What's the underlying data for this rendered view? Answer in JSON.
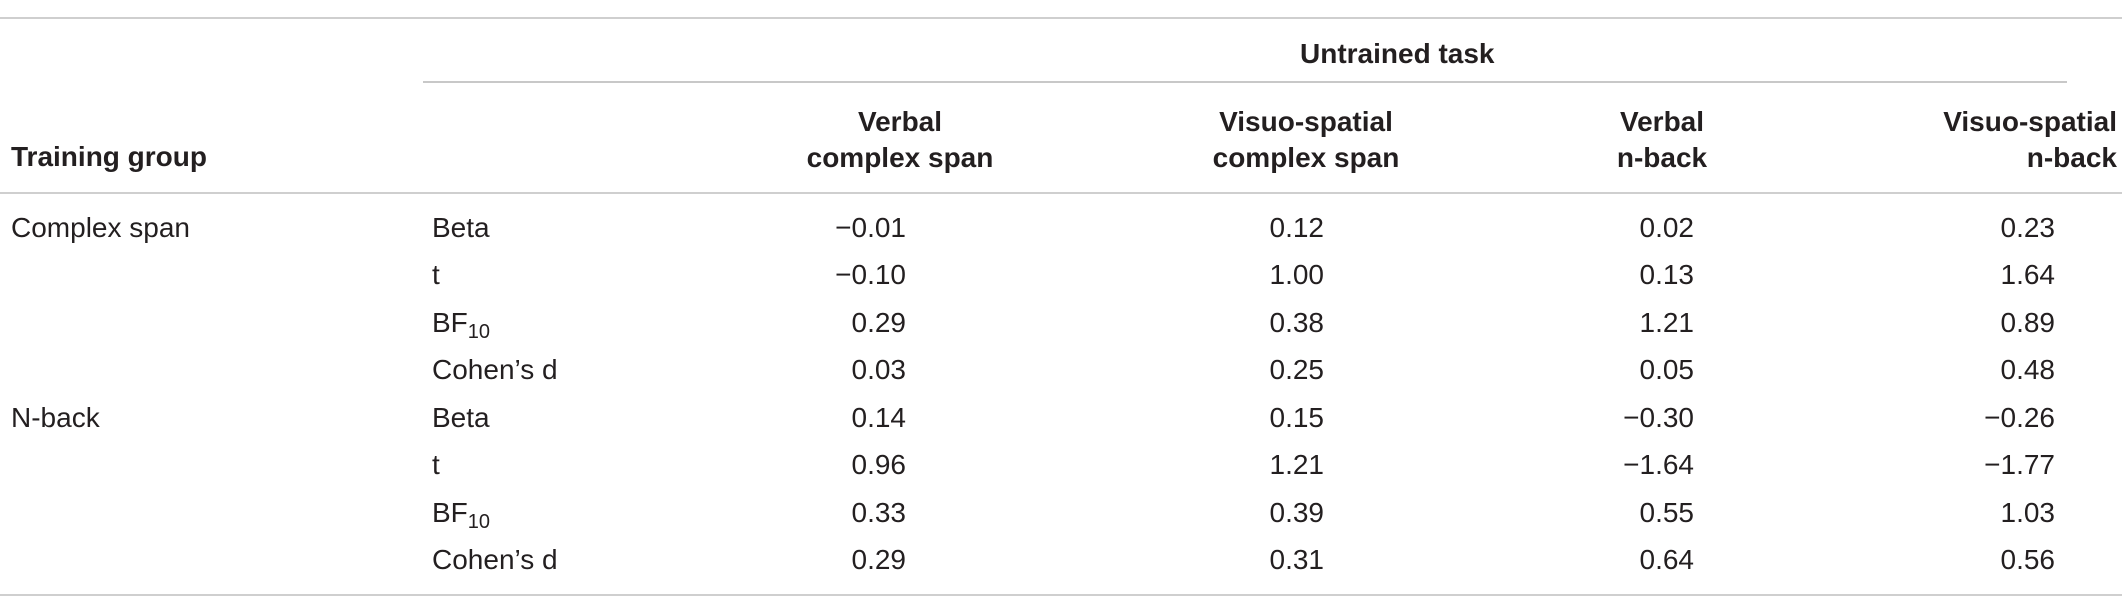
{
  "header": {
    "spanning_label": "Untrained task",
    "row_header": "Training group",
    "columns": [
      {
        "line1": "Verbal",
        "line2": "complex span"
      },
      {
        "line1": "Visuo-spatial",
        "line2": "complex span"
      },
      {
        "line1": "Verbal",
        "line2": "n-back"
      },
      {
        "line1": "Visuo-spatial",
        "line2": "n-back"
      }
    ]
  },
  "groups": [
    {
      "name": "Complex span",
      "rows": [
        {
          "stat": "Beta",
          "stat_sub": "",
          "values": [
            "−0.01",
            "0.12",
            "0.02",
            "0.23"
          ]
        },
        {
          "stat": "t",
          "stat_sub": "",
          "values": [
            "−0.10",
            "1.00",
            "0.13",
            "1.64"
          ]
        },
        {
          "stat": "BF",
          "stat_sub": "10",
          "values": [
            "0.29",
            "0.38",
            "1.21",
            "0.89"
          ]
        },
        {
          "stat": "Cohen’s d",
          "stat_sub": "",
          "values": [
            "0.03",
            "0.25",
            "0.05",
            "0.48"
          ]
        }
      ]
    },
    {
      "name": "N-back",
      "rows": [
        {
          "stat": "Beta",
          "stat_sub": "",
          "values": [
            "0.14",
            "0.15",
            "−0.30",
            "−0.26"
          ]
        },
        {
          "stat": "t",
          "stat_sub": "",
          "values": [
            "0.96",
            "1.21",
            "−1.64",
            "−1.77"
          ]
        },
        {
          "stat": "BF",
          "stat_sub": "10",
          "values": [
            "0.33",
            "0.39",
            "0.55",
            "1.03"
          ]
        },
        {
          "stat": "Cohen’s d",
          "stat_sub": "",
          "values": [
            "0.29",
            "0.31",
            "0.64",
            "0.56"
          ]
        }
      ]
    }
  ]
}
